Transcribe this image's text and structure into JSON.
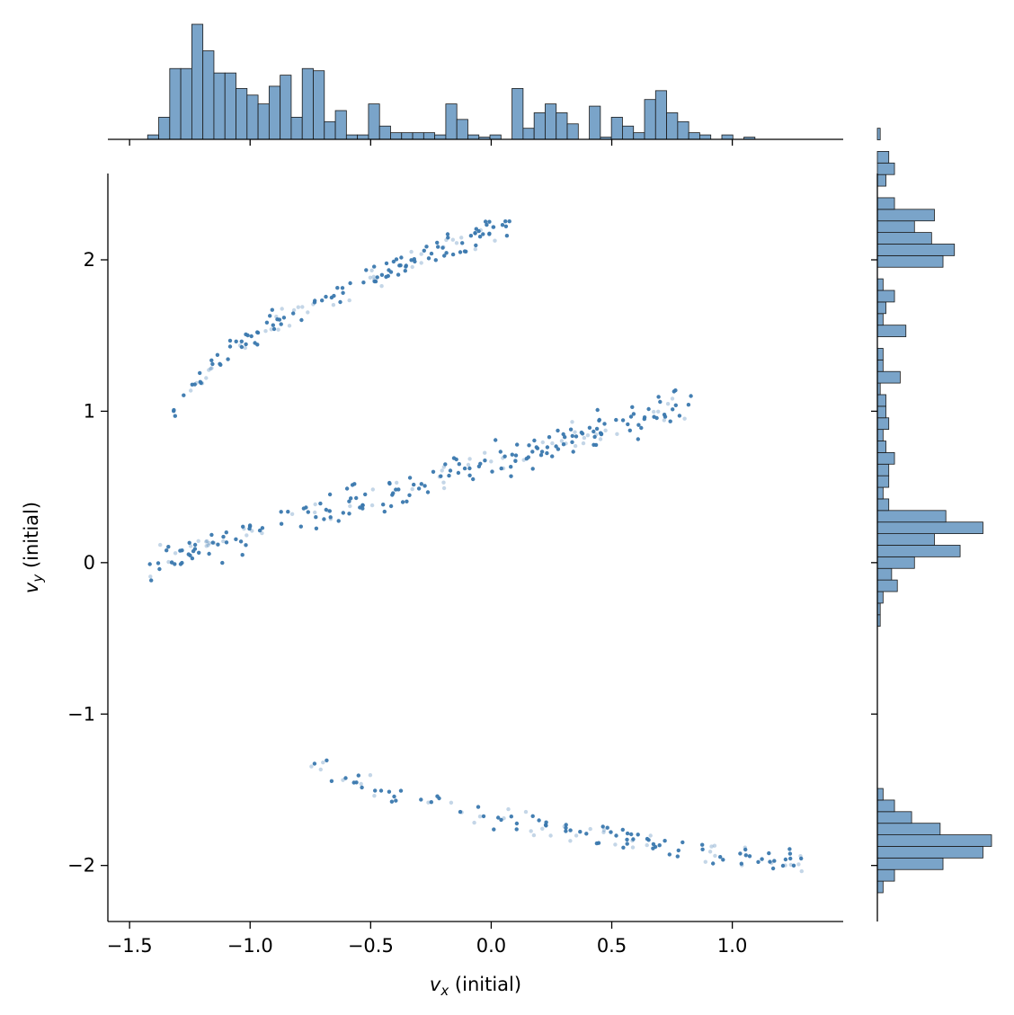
{
  "chart_data": {
    "type": "jointplot",
    "xlabel": {
      "base": "v",
      "sub": "x",
      "rest": " (initial)"
    },
    "ylabel": {
      "base": "v",
      "sub": "y",
      "rest": " (initial)"
    },
    "xlim": [
      -1.59,
      1.46
    ],
    "ylim": [
      -2.37,
      2.57
    ],
    "x_ticks": [
      -1.5,
      -1.0,
      -0.5,
      0.0,
      0.5,
      1.0
    ],
    "x_tick_labels": [
      "−1.5",
      "−1.0",
      "−0.5",
      "0.0",
      "0.5",
      "1.0"
    ],
    "y_ticks": [
      -2,
      -1,
      0,
      1,
      2
    ],
    "y_tick_labels": [
      "−2",
      "−1",
      "0",
      "1",
      "2"
    ],
    "colors": {
      "point": "#3a78ae",
      "bar_fill": "#7aa4c9",
      "bar_edge": "#1a1a1a",
      "axis": "#000000"
    },
    "grid": false,
    "legend": "none",
    "scatter_groups": [
      {
        "arm": "upper",
        "x_range": [
          -1.33,
          0.1
        ],
        "y_center_at_xmin": 0.85,
        "y_center_at_xmax": 2.25,
        "curve_power": 0.55,
        "count": 150,
        "spread": 0.08
      },
      {
        "arm": "middle",
        "x_range": [
          -1.42,
          0.83
        ],
        "y_center_at_xmin": 0.0,
        "y_center_at_xmax": 1.05,
        "curve_power": 1.0,
        "count": 240,
        "spread": 0.11
      },
      {
        "arm": "lower",
        "x_range": [
          -0.75,
          1.33
        ],
        "y_center_at_xmin": -1.3,
        "y_center_at_xmax": -2.0,
        "curve_power": 0.6,
        "count": 130,
        "spread": 0.08
      }
    ],
    "x_histogram": {
      "bin_start": -1.425,
      "bin_width": 0.0458,
      "counts": [
        2,
        10,
        32,
        32,
        52,
        40,
        30,
        30,
        23,
        20,
        16,
        24,
        29,
        10,
        32,
        31,
        8,
        13,
        2,
        2,
        16,
        6,
        3,
        3,
        3,
        3,
        2,
        16,
        9,
        2,
        1,
        2,
        0,
        23,
        5,
        12,
        16,
        12,
        7,
        0,
        15,
        1,
        10,
        6,
        3,
        18,
        22,
        12,
        8,
        3,
        2,
        0,
        2,
        0,
        1,
        0,
        0,
        0,
        0,
        0,
        0,
        0,
        0
      ]
    },
    "y_histogram": {
      "bin_start": -2.18,
      "bin_width": 0.0765,
      "counts": [
        2,
        6,
        23,
        37,
        40,
        22,
        12,
        6,
        2,
        0,
        0,
        0,
        0,
        0,
        0,
        0,
        0,
        0,
        0,
        0,
        0,
        0,
        0,
        1,
        1,
        2,
        7,
        5,
        13,
        29,
        20,
        37,
        24,
        4,
        2,
        4,
        4,
        6,
        3,
        2,
        4,
        3,
        3,
        1,
        8,
        2,
        2,
        0,
        10,
        2,
        3,
        6,
        2,
        0,
        23,
        27,
        19,
        13,
        20,
        6,
        0,
        3,
        6,
        4,
        0,
        1,
        0,
        0,
        0
      ]
    }
  }
}
